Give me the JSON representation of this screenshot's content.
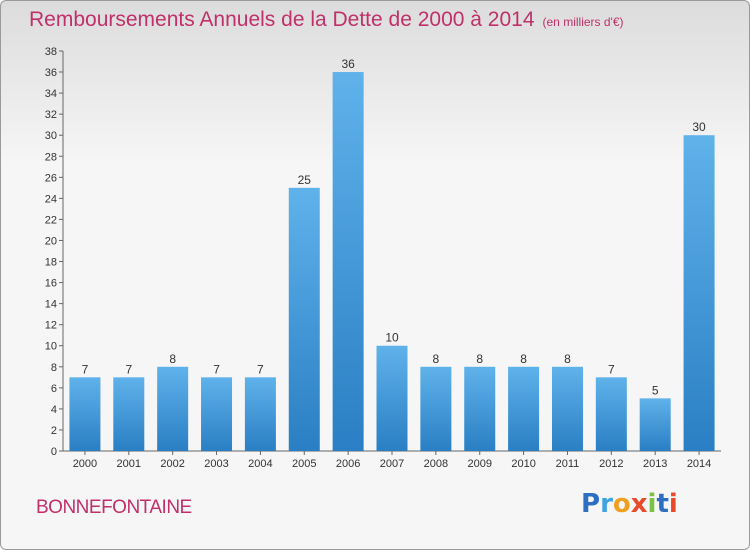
{
  "chart_data": {
    "type": "bar",
    "title": "Remboursements Annuels de la Dette de 2000 à 2014",
    "unit": "(en milliers d'€)",
    "categories": [
      "2000",
      "2001",
      "2002",
      "2003",
      "2004",
      "2005",
      "2006",
      "2007",
      "2008",
      "2009",
      "2010",
      "2011",
      "2012",
      "2013",
      "2014"
    ],
    "values": [
      7,
      7,
      8,
      7,
      7,
      25,
      36,
      10,
      8,
      8,
      8,
      8,
      7,
      5,
      30
    ],
    "ylim": [
      0,
      38
    ],
    "yticks": [
      0,
      2,
      4,
      6,
      8,
      10,
      12,
      14,
      16,
      18,
      20,
      22,
      24,
      26,
      28,
      30,
      32,
      34,
      36,
      38
    ],
    "grid": false,
    "bar_color": "#4a9fdf"
  },
  "footer": {
    "commune": "BONNEFONTAINE"
  },
  "logo": {
    "letters": [
      "P",
      "r",
      "o",
      "x",
      "i",
      "t",
      "i"
    ],
    "colors": [
      "#2d6fc0",
      "#3fa3e0",
      "#f0a020",
      "#e84a2a",
      "#7cc242",
      "#2d6fc0",
      "#e84a2a"
    ]
  }
}
